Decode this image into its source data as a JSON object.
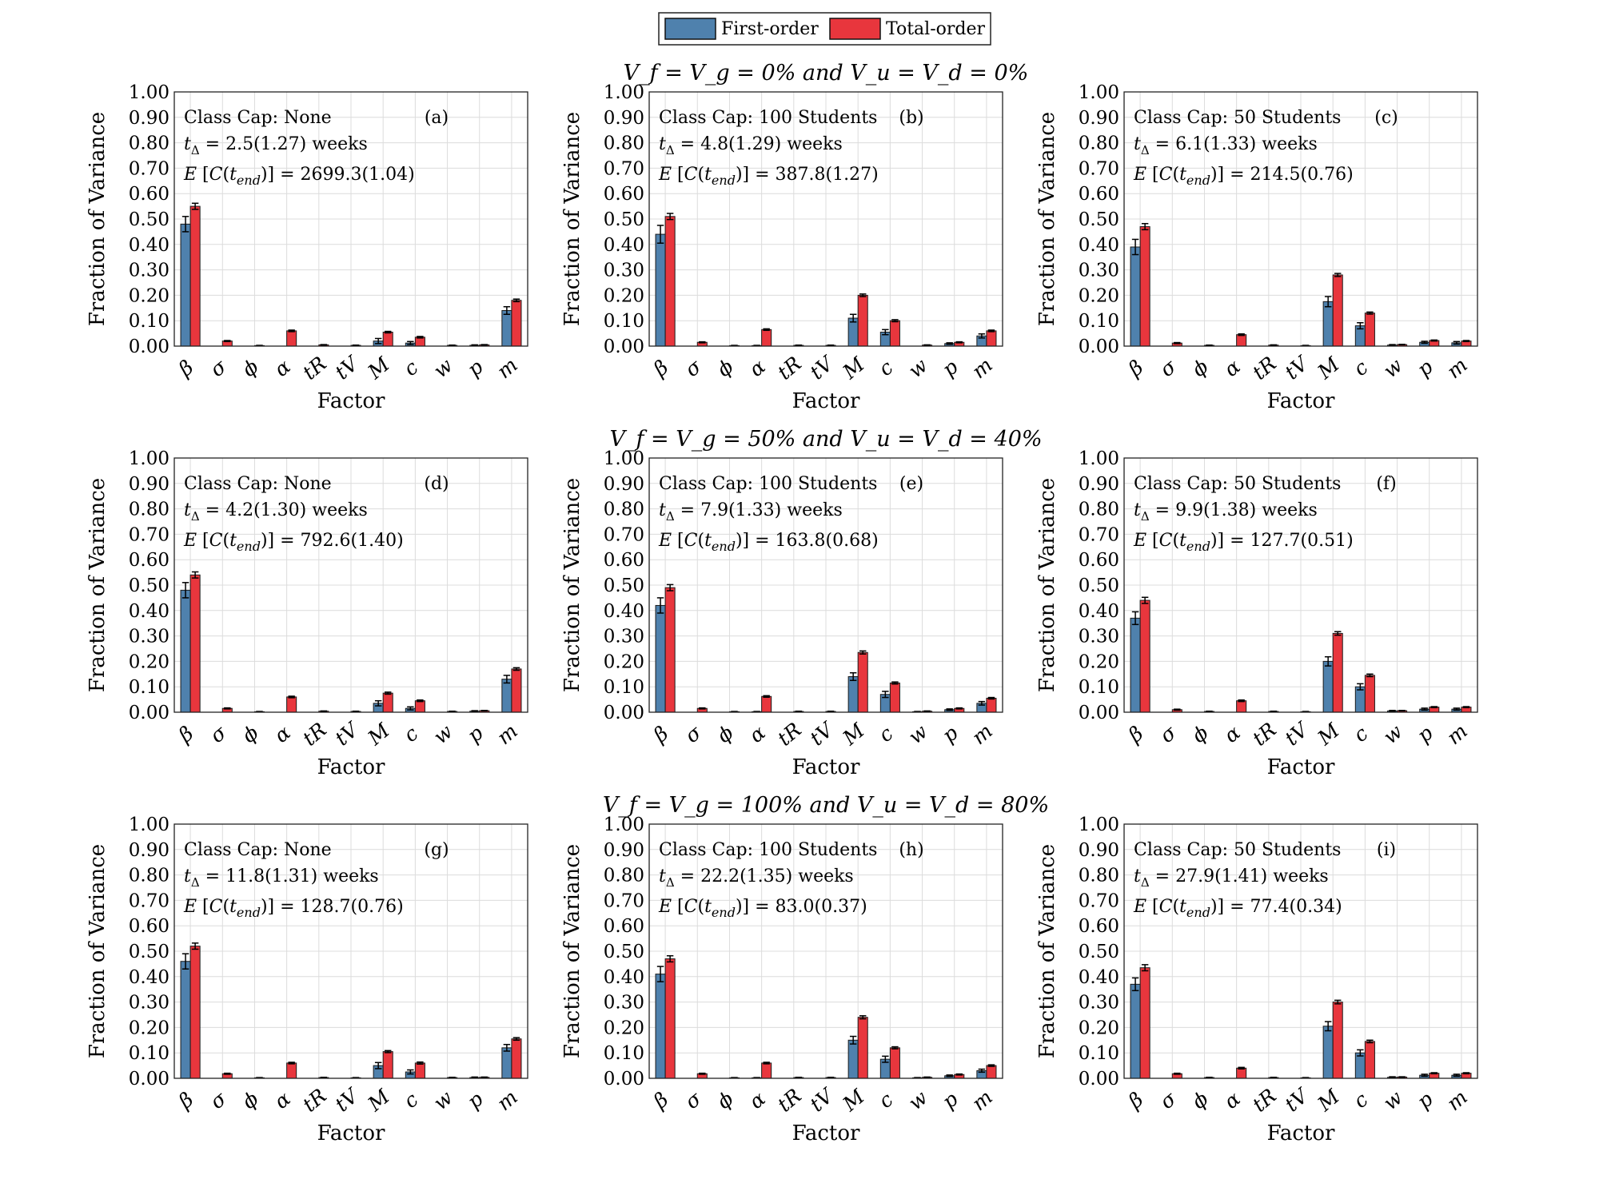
{
  "legend": {
    "items": [
      {
        "label": "First-order",
        "color": "#4f81ad"
      },
      {
        "label": "Total-order",
        "color": "#e8363d"
      }
    ],
    "placement": "top-center"
  },
  "row_titles": [
    "V_f = V_g = 0% and V_u = V_d = 0%",
    "V_f = V_g = 50% and V_u = V_d = 40%",
    "V_f = V_g = 100% and V_u = V_d = 80%"
  ],
  "chart_data": [
    {
      "type": "bar",
      "panel": "(a)",
      "row_title": "V_f = V_g = 0% and V_u = V_d = 0%",
      "annotation": {
        "class_cap": "Class Cap: None",
        "t_delta": "2.5(1.27) weeks",
        "expected_cost": "2699.3(1.04)"
      },
      "xlabel": "Factor",
      "ylabel": "Fraction of Variance",
      "ylim": [
        0,
        1
      ],
      "categories": [
        "β",
        "σ",
        "ϕ",
        "α",
        "tR",
        "tV",
        "M",
        "c",
        "w",
        "p",
        "m"
      ],
      "series": [
        {
          "name": "First-order",
          "values": [
            0.48,
            0,
            0,
            0,
            0,
            0,
            0.02,
            0.012,
            0,
            0.003,
            0.14
          ],
          "errors": [
            0.03,
            0,
            0,
            0,
            0,
            0,
            0.01,
            0.006,
            0,
            0.002,
            0.015
          ]
        },
        {
          "name": "Total-order",
          "values": [
            0.55,
            0.02,
            0.002,
            0.06,
            0.005,
            0.003,
            0.055,
            0.035,
            0.003,
            0.005,
            0.18
          ],
          "errors": [
            0.012,
            0.002,
            0.001,
            0.003,
            0.001,
            0.001,
            0.003,
            0.003,
            0.001,
            0.001,
            0.005
          ]
        }
      ]
    },
    {
      "type": "bar",
      "panel": "(b)",
      "row_title": "V_f = V_g = 0% and V_u = V_d = 0%",
      "annotation": {
        "class_cap": "Class Cap: 100 Students",
        "t_delta": "4.8(1.29) weeks",
        "expected_cost": "387.8(1.27)"
      },
      "xlabel": "Factor",
      "ylabel": "Fraction of Variance",
      "ylim": [
        0,
        1
      ],
      "categories": [
        "β",
        "σ",
        "ϕ",
        "α",
        "tR",
        "tV",
        "M",
        "c",
        "w",
        "p",
        "m"
      ],
      "series": [
        {
          "name": "First-order",
          "values": [
            0.44,
            0,
            0,
            0.002,
            0,
            0,
            0.11,
            0.055,
            0,
            0.01,
            0.04
          ],
          "errors": [
            0.035,
            0,
            0,
            0.001,
            0,
            0,
            0.015,
            0.01,
            0,
            0.003,
            0.008
          ]
        },
        {
          "name": "Total-order",
          "values": [
            0.51,
            0.015,
            0.002,
            0.065,
            0.003,
            0.003,
            0.2,
            0.1,
            0.004,
            0.015,
            0.06
          ],
          "errors": [
            0.012,
            0.002,
            0.001,
            0.003,
            0.001,
            0.001,
            0.005,
            0.004,
            0.001,
            0.002,
            0.003
          ]
        }
      ]
    },
    {
      "type": "bar",
      "panel": "(c)",
      "row_title": "V_f = V_g = 0% and V_u = V_d = 0%",
      "annotation": {
        "class_cap": "Class Cap: 50 Students",
        "t_delta": "6.1(1.33) weeks",
        "expected_cost": "214.5(0.76)"
      },
      "xlabel": "Factor",
      "ylabel": "Fraction of Variance",
      "ylim": [
        0,
        1
      ],
      "categories": [
        "β",
        "σ",
        "ϕ",
        "α",
        "tR",
        "tV",
        "M",
        "c",
        "w",
        "p",
        "m"
      ],
      "series": [
        {
          "name": "First-order",
          "values": [
            0.39,
            0,
            0,
            0,
            0,
            0,
            0.175,
            0.08,
            0.004,
            0.015,
            0.013
          ],
          "errors": [
            0.03,
            0,
            0,
            0,
            0,
            0,
            0.02,
            0.012,
            0.002,
            0.004,
            0.005
          ]
        },
        {
          "name": "Total-order",
          "values": [
            0.47,
            0.012,
            0.003,
            0.045,
            0.004,
            0.002,
            0.28,
            0.13,
            0.006,
            0.022,
            0.02
          ],
          "errors": [
            0.012,
            0.002,
            0.001,
            0.003,
            0.001,
            0.001,
            0.006,
            0.004,
            0.001,
            0.002,
            0.002
          ]
        }
      ]
    },
    {
      "type": "bar",
      "panel": "(d)",
      "row_title": "V_f = V_g = 50% and V_u = V_d = 40%",
      "annotation": {
        "class_cap": "Class Cap: None",
        "t_delta": "4.2(1.30) weeks",
        "expected_cost": "792.6(1.40)"
      },
      "xlabel": "Factor",
      "ylabel": "Fraction of Variance",
      "ylim": [
        0,
        1
      ],
      "categories": [
        "β",
        "σ",
        "ϕ",
        "α",
        "tR",
        "tV",
        "M",
        "c",
        "w",
        "p",
        "m"
      ],
      "series": [
        {
          "name": "First-order",
          "values": [
            0.48,
            0,
            0,
            0,
            0,
            0,
            0.035,
            0.015,
            0,
            0.004,
            0.13
          ],
          "errors": [
            0.03,
            0,
            0,
            0,
            0,
            0,
            0.01,
            0.006,
            0,
            0.002,
            0.015
          ]
        },
        {
          "name": "Total-order",
          "values": [
            0.54,
            0.015,
            0.002,
            0.06,
            0.004,
            0.003,
            0.075,
            0.045,
            0.003,
            0.006,
            0.17
          ],
          "errors": [
            0.012,
            0.002,
            0.001,
            0.003,
            0.001,
            0.001,
            0.004,
            0.003,
            0.001,
            0.001,
            0.005
          ]
        }
      ]
    },
    {
      "type": "bar",
      "panel": "(e)",
      "row_title": "V_f = V_g = 50% and V_u = V_d = 40%",
      "annotation": {
        "class_cap": "Class Cap: 100 Students",
        "t_delta": "7.9(1.33) weeks",
        "expected_cost": "163.8(0.68)"
      },
      "xlabel": "Factor",
      "ylabel": "Fraction of Variance",
      "ylim": [
        0,
        1
      ],
      "categories": [
        "β",
        "σ",
        "ϕ",
        "α",
        "tR",
        "tV",
        "M",
        "c",
        "w",
        "p",
        "m"
      ],
      "series": [
        {
          "name": "First-order",
          "values": [
            0.42,
            0,
            0,
            0.002,
            0,
            0,
            0.14,
            0.07,
            0.002,
            0.01,
            0.035
          ],
          "errors": [
            0.03,
            0,
            0,
            0.001,
            0,
            0,
            0.015,
            0.012,
            0.001,
            0.003,
            0.007
          ]
        },
        {
          "name": "Total-order",
          "values": [
            0.49,
            0.015,
            0.002,
            0.062,
            0.003,
            0.003,
            0.235,
            0.115,
            0.004,
            0.015,
            0.055
          ],
          "errors": [
            0.012,
            0.002,
            0.001,
            0.003,
            0.001,
            0.001,
            0.006,
            0.004,
            0.001,
            0.002,
            0.003
          ]
        }
      ]
    },
    {
      "type": "bar",
      "panel": "(f)",
      "row_title": "V_f = V_g = 50% and V_u = V_d = 40%",
      "annotation": {
        "class_cap": "Class Cap: 50 Students",
        "t_delta": "9.9(1.38) weeks",
        "expected_cost": "127.7(0.51)"
      },
      "xlabel": "Factor",
      "ylabel": "Fraction of Variance",
      "ylim": [
        0,
        1
      ],
      "categories": [
        "β",
        "σ",
        "ϕ",
        "α",
        "tR",
        "tV",
        "M",
        "c",
        "w",
        "p",
        "m"
      ],
      "series": [
        {
          "name": "First-order",
          "values": [
            0.37,
            0,
            0,
            0,
            0,
            0,
            0.2,
            0.1,
            0.005,
            0.012,
            0.012
          ],
          "errors": [
            0.025,
            0,
            0,
            0,
            0,
            0,
            0.018,
            0.012,
            0.002,
            0.004,
            0.004
          ]
        },
        {
          "name": "Total-order",
          "values": [
            0.44,
            0.01,
            0.003,
            0.045,
            0.003,
            0.002,
            0.31,
            0.145,
            0.006,
            0.02,
            0.02
          ],
          "errors": [
            0.012,
            0.002,
            0.001,
            0.003,
            0.001,
            0.001,
            0.007,
            0.005,
            0.001,
            0.002,
            0.002
          ]
        }
      ]
    },
    {
      "type": "bar",
      "panel": "(g)",
      "row_title": "V_f = V_g = 100% and V_u = V_d = 80%",
      "annotation": {
        "class_cap": "Class Cap: None",
        "t_delta": "11.8(1.31) weeks",
        "expected_cost": "128.7(0.76)"
      },
      "xlabel": "Factor",
      "ylabel": "Fraction of Variance",
      "ylim": [
        0,
        1
      ],
      "categories": [
        "β",
        "σ",
        "ϕ",
        "α",
        "tR",
        "tV",
        "M",
        "c",
        "w",
        "p",
        "m"
      ],
      "series": [
        {
          "name": "First-order",
          "values": [
            0.46,
            0,
            0,
            0,
            0,
            0,
            0.05,
            0.025,
            0,
            0.003,
            0.12
          ],
          "errors": [
            0.03,
            0,
            0,
            0,
            0,
            0,
            0.012,
            0.008,
            0,
            0.002,
            0.013
          ]
        },
        {
          "name": "Total-order",
          "values": [
            0.52,
            0.018,
            0.002,
            0.06,
            0.003,
            0.002,
            0.105,
            0.06,
            0.003,
            0.004,
            0.155
          ],
          "errors": [
            0.012,
            0.002,
            0.001,
            0.003,
            0.001,
            0.001,
            0.004,
            0.004,
            0.001,
            0.001,
            0.005
          ]
        }
      ]
    },
    {
      "type": "bar",
      "panel": "(h)",
      "row_title": "V_f = V_g = 100% and V_u = V_d = 80%",
      "annotation": {
        "class_cap": "Class Cap: 100 Students",
        "t_delta": "22.2(1.35) weeks",
        "expected_cost": "83.0(0.37)"
      },
      "xlabel": "Factor",
      "ylabel": "Fraction of Variance",
      "ylim": [
        0,
        1
      ],
      "categories": [
        "β",
        "σ",
        "ϕ",
        "α",
        "tR",
        "tV",
        "M",
        "c",
        "w",
        "p",
        "m"
      ],
      "series": [
        {
          "name": "First-order",
          "values": [
            0.41,
            0,
            0,
            0.002,
            0,
            0,
            0.15,
            0.075,
            0.002,
            0.01,
            0.03
          ],
          "errors": [
            0.03,
            0,
            0,
            0.001,
            0,
            0,
            0.015,
            0.012,
            0.001,
            0.003,
            0.006
          ]
        },
        {
          "name": "Total-order",
          "values": [
            0.47,
            0.018,
            0.002,
            0.06,
            0.003,
            0.003,
            0.24,
            0.12,
            0.004,
            0.015,
            0.05
          ],
          "errors": [
            0.012,
            0.002,
            0.001,
            0.003,
            0.001,
            0.001,
            0.006,
            0.004,
            0.001,
            0.002,
            0.003
          ]
        }
      ]
    },
    {
      "type": "bar",
      "panel": "(i)",
      "row_title": "V_f = V_g = 100% and V_u = V_d = 80%",
      "annotation": {
        "class_cap": "Class Cap: 50 Students",
        "t_delta": "27.9(1.41) weeks",
        "expected_cost": "77.4(0.34)"
      },
      "xlabel": "Factor",
      "ylabel": "Fraction of Variance",
      "ylim": [
        0,
        1
      ],
      "categories": [
        "β",
        "σ",
        "ϕ",
        "α",
        "tR",
        "tV",
        "M",
        "c",
        "w",
        "p",
        "m"
      ],
      "series": [
        {
          "name": "First-order",
          "values": [
            0.37,
            0,
            0,
            0,
            0,
            0,
            0.205,
            0.1,
            0.004,
            0.012,
            0.012
          ],
          "errors": [
            0.025,
            0,
            0,
            0,
            0,
            0,
            0.018,
            0.012,
            0.002,
            0.004,
            0.004
          ]
        },
        {
          "name": "Total-order",
          "values": [
            0.435,
            0.018,
            0.003,
            0.04,
            0.003,
            0.002,
            0.3,
            0.145,
            0.005,
            0.02,
            0.02
          ],
          "errors": [
            0.012,
            0.002,
            0.001,
            0.003,
            0.001,
            0.001,
            0.007,
            0.005,
            0.001,
            0.002,
            0.002
          ]
        }
      ]
    }
  ],
  "yticks": [
    "0.00",
    "0.10",
    "0.20",
    "0.30",
    "0.40",
    "0.50",
    "0.60",
    "0.70",
    "0.80",
    "0.90",
    "1.00"
  ]
}
